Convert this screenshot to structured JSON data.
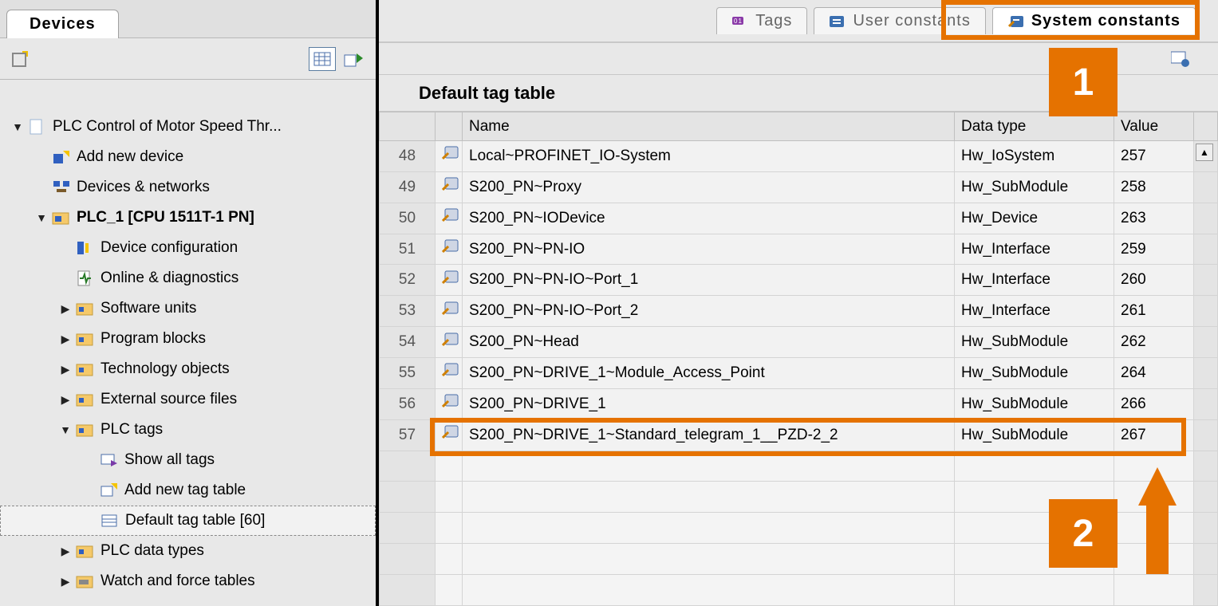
{
  "colors": {
    "highlight": "#e57200",
    "bg": "#e8e8e8",
    "border": "#c0c0c0"
  },
  "left": {
    "tab_label": "Devices"
  },
  "tree": [
    {
      "indent": 0,
      "twisty": "▼",
      "icon": "page",
      "label": "PLC Control of Motor Speed Thr...",
      "bold": false
    },
    {
      "indent": 1,
      "twisty": "",
      "icon": "add-device",
      "label": "Add new device"
    },
    {
      "indent": 1,
      "twisty": "",
      "icon": "network",
      "label": "Devices & networks"
    },
    {
      "indent": 1,
      "twisty": "▼",
      "icon": "plc-folder",
      "label": "PLC_1 [CPU 1511T-1 PN]",
      "bold": true
    },
    {
      "indent": 2,
      "twisty": "",
      "icon": "device-cfg",
      "label": "Device configuration"
    },
    {
      "indent": 2,
      "twisty": "",
      "icon": "online-diag",
      "label": "Online & diagnostics"
    },
    {
      "indent": 2,
      "twisty": "▶",
      "icon": "folder-sw",
      "label": "Software units"
    },
    {
      "indent": 2,
      "twisty": "▶",
      "icon": "folder-pb",
      "label": "Program blocks"
    },
    {
      "indent": 2,
      "twisty": "▶",
      "icon": "folder-to",
      "label": "Technology objects"
    },
    {
      "indent": 2,
      "twisty": "▶",
      "icon": "folder-ext",
      "label": "External source files"
    },
    {
      "indent": 2,
      "twisty": "▼",
      "icon": "folder-tags",
      "label": "PLC tags"
    },
    {
      "indent": 3,
      "twisty": "",
      "icon": "show-tags",
      "label": "Show all tags"
    },
    {
      "indent": 3,
      "twisty": "",
      "icon": "add-table",
      "label": "Add new tag table"
    },
    {
      "indent": 3,
      "twisty": "",
      "icon": "def-table",
      "label": "Default tag table [60]",
      "dashed": true
    },
    {
      "indent": 2,
      "twisty": "▶",
      "icon": "folder-types",
      "label": "PLC data types"
    },
    {
      "indent": 2,
      "twisty": "▶",
      "icon": "folder-watch",
      "label": "Watch and force tables"
    }
  ],
  "right": {
    "tabs": [
      {
        "icon": "tags-icn",
        "label": "Tags",
        "active": false
      },
      {
        "icon": "user-const",
        "label": "User constants",
        "active": false
      },
      {
        "icon": "sys-const",
        "label": "System constants",
        "active": true
      }
    ],
    "title": "Default tag table",
    "columns": {
      "name": "Name",
      "type": "Data type",
      "value": "Value"
    },
    "rows": [
      {
        "line": 48,
        "name": "Local~PROFINET_IO-System",
        "type": "Hw_IoSystem",
        "value": 257
      },
      {
        "line": 49,
        "name": "S200_PN~Proxy",
        "type": "Hw_SubModule",
        "value": 258
      },
      {
        "line": 50,
        "name": "S200_PN~IODevice",
        "type": "Hw_Device",
        "value": 263
      },
      {
        "line": 51,
        "name": "S200_PN~PN-IO",
        "type": "Hw_Interface",
        "value": 259
      },
      {
        "line": 52,
        "name": "S200_PN~PN-IO~Port_1",
        "type": "Hw_Interface",
        "value": 260
      },
      {
        "line": 53,
        "name": "S200_PN~PN-IO~Port_2",
        "type": "Hw_Interface",
        "value": 261
      },
      {
        "line": 54,
        "name": "S200_PN~Head",
        "type": "Hw_SubModule",
        "value": 262
      },
      {
        "line": 55,
        "name": "S200_PN~DRIVE_1~Module_Access_Point",
        "type": "Hw_SubModule",
        "value": 264
      },
      {
        "line": 56,
        "name": "S200_PN~DRIVE_1",
        "type": "Hw_SubModule",
        "value": 266
      },
      {
        "line": 57,
        "name": "S200_PN~DRIVE_1~Standard_telegram_1__PZD-2_2",
        "type": "Hw_SubModule",
        "value": 267
      }
    ],
    "empty_rows": 5
  },
  "callouts": {
    "c1": "1",
    "c2": "2"
  }
}
